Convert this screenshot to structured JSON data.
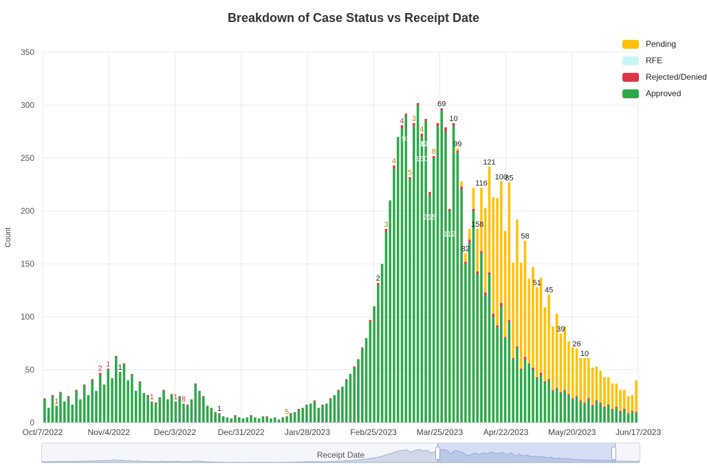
{
  "chart_data": {
    "type": "bar",
    "stacked": true,
    "title": "Breakdown of Case Status vs Receipt Date",
    "xlabel": "Receipt Date",
    "ylabel": "Count",
    "ylim": [
      0,
      350
    ],
    "yticks": [
      0,
      50,
      100,
      150,
      200,
      250,
      300,
      350
    ],
    "x_tick_labels": [
      "Oct/7/2022",
      "Nov/4/2022",
      "Dec/3/2022",
      "Dec/31/2022",
      "Jan/28/2023",
      "Feb/25/2023",
      "Mar/25/2023",
      "Apr/22/2023",
      "May/20/2023",
      "Jun/17/2023"
    ],
    "grid": true,
    "legend_position": "top-right",
    "series": [
      {
        "name": "Approved",
        "color": "#2ea84a",
        "values": [
          22,
          14,
          25,
          16,
          28,
          20,
          24,
          17,
          30,
          22,
          35,
          26,
          40,
          30,
          45,
          36,
          50,
          42,
          62,
          48,
          55,
          40,
          45,
          30,
          38,
          28,
          25,
          20,
          18,
          24,
          30,
          22,
          26,
          20,
          24,
          18,
          16,
          22,
          36,
          30,
          24,
          16,
          14,
          10,
          8,
          6,
          5,
          4,
          6,
          5,
          4,
          5,
          6,
          5,
          4,
          6,
          5,
          4,
          5,
          3,
          4,
          6,
          8,
          10,
          12,
          14,
          16,
          18,
          20,
          14,
          16,
          18,
          22,
          26,
          30,
          34,
          40,
          46,
          52,
          60,
          70,
          80,
          95,
          110,
          130,
          150,
          180,
          210,
          240,
          270,
          278,
          290,
          230,
          280,
          300,
          270,
          285,
          215,
          250,
          280,
          295,
          275,
          200,
          280,
          255,
          220,
          150,
          170,
          200,
          140,
          160,
          120,
          140,
          100,
          90,
          110,
          80,
          95,
          60,
          70,
          50,
          60,
          55,
          50,
          42,
          45,
          38,
          40,
          30,
          32,
          28,
          30,
          26,
          22,
          24,
          20,
          18,
          22,
          16,
          20,
          18,
          14,
          16,
          12,
          14,
          10,
          12,
          8,
          10,
          9
        ]
      },
      {
        "name": "Rejected/Denied",
        "color": "#dc3545",
        "values": [
          1,
          0,
          1,
          0,
          1,
          0,
          1,
          0,
          1,
          0,
          1,
          0,
          1,
          0,
          2,
          0,
          1,
          0,
          1,
          0,
          1,
          0,
          1,
          0,
          1,
          0,
          1,
          0,
          1,
          0,
          1,
          0,
          1,
          0,
          1,
          0,
          1,
          0,
          1,
          0,
          1,
          0,
          0,
          0,
          1,
          0,
          0,
          0,
          1,
          0,
          0,
          0,
          1,
          0,
          0,
          0,
          1,
          0,
          0,
          0,
          1,
          0,
          1,
          0,
          1,
          0,
          1,
          0,
          1,
          0,
          1,
          0,
          1,
          0,
          1,
          0,
          1,
          0,
          1,
          0,
          1,
          0,
          2,
          0,
          2,
          0,
          3,
          0,
          3,
          0,
          3,
          2,
          2,
          3,
          2,
          3,
          2,
          3,
          2,
          3,
          2,
          4,
          2,
          3,
          2,
          3,
          2,
          3,
          2,
          3,
          2,
          3,
          2,
          3,
          2,
          3,
          1,
          2,
          1,
          2,
          1,
          2,
          1,
          2,
          1,
          2,
          1,
          1,
          1,
          1,
          1,
          1,
          1,
          1,
          1,
          1,
          1,
          1,
          1,
          1,
          1,
          1,
          1,
          1,
          1,
          1,
          1,
          1,
          1,
          1
        ]
      },
      {
        "name": "RFE",
        "color": "#c9f4f6",
        "values": [
          0,
          0,
          0,
          0,
          0,
          0,
          0,
          0,
          0,
          0,
          0,
          0,
          0,
          0,
          0,
          0,
          0,
          0,
          0,
          0,
          0,
          0,
          0,
          0,
          0,
          0,
          0,
          0,
          0,
          0,
          0,
          0,
          0,
          0,
          0,
          0,
          0,
          0,
          0,
          0,
          0,
          0,
          0,
          0,
          0,
          0,
          0,
          0,
          0,
          0,
          0,
          0,
          0,
          0,
          0,
          0,
          0,
          0,
          0,
          0,
          0,
          0,
          0,
          0,
          0,
          0,
          0,
          0,
          0,
          0,
          0,
          0,
          0,
          0,
          0,
          0,
          0,
          0,
          0,
          0,
          0,
          0,
          0,
          0,
          0,
          0,
          0,
          0,
          0,
          0,
          0,
          0,
          0,
          0,
          0,
          0,
          0,
          0,
          0,
          0,
          0,
          0,
          0,
          0,
          0,
          0,
          0,
          0,
          0,
          0,
          0,
          0,
          0,
          0,
          0,
          0,
          0,
          0,
          0,
          0,
          0,
          0,
          0,
          0,
          0,
          0,
          0,
          0,
          0,
          0,
          0,
          0,
          0,
          0,
          0,
          0,
          0,
          0,
          0,
          0,
          0,
          0,
          0,
          0,
          0,
          0,
          0,
          0,
          0,
          0
        ]
      },
      {
        "name": "Pending",
        "color": "#ffc107",
        "values": [
          0,
          0,
          0,
          0,
          0,
          0,
          0,
          0,
          0,
          0,
          0,
          0,
          0,
          0,
          0,
          0,
          0,
          0,
          0,
          0,
          0,
          0,
          0,
          0,
          0,
          0,
          0,
          0,
          0,
          0,
          0,
          0,
          0,
          0,
          0,
          0,
          0,
          0,
          0,
          0,
          0,
          0,
          0,
          0,
          0,
          0,
          0,
          0,
          0,
          0,
          0,
          0,
          0,
          0,
          0,
          0,
          0,
          0,
          0,
          0,
          0,
          0,
          0,
          0,
          0,
          0,
          0,
          0,
          0,
          0,
          0,
          0,
          0,
          0,
          0,
          0,
          0,
          0,
          0,
          0,
          0,
          0,
          0,
          0,
          0,
          0,
          0,
          0,
          0,
          0,
          0,
          0,
          0,
          0,
          0,
          0,
          0,
          0,
          0,
          0,
          0,
          0,
          0,
          0,
          2,
          5,
          8,
          10,
          20,
          40,
          60,
          80,
          100,
          110,
          120,
          115,
          100,
          130,
          90,
          120,
          100,
          110,
          80,
          95,
          85,
          90,
          70,
          80,
          60,
          70,
          55,
          60,
          50,
          48,
          45,
          40,
          42,
          38,
          35,
          32,
          30,
          28,
          26,
          24,
          22,
          20,
          18,
          16,
          15,
          30
        ]
      }
    ],
    "annotations": [
      {
        "x": 3,
        "text": "1",
        "color": "#dc3545"
      },
      {
        "x": 14,
        "text": "2",
        "color": "#dc3545"
      },
      {
        "x": 16,
        "text": "1",
        "color": "#dc3545"
      },
      {
        "x": 19,
        "text": "1",
        "color": "#222"
      },
      {
        "x": 27,
        "text": "1",
        "color": "#dc3545"
      },
      {
        "x": 33,
        "text": "1",
        "color": "#dc3545"
      },
      {
        "x": 35,
        "text": "8",
        "color": "#dc3545"
      },
      {
        "x": 44,
        "text": "1",
        "color": "#222"
      },
      {
        "x": 61,
        "text": "5",
        "color": "#b8860b"
      },
      {
        "x": 84,
        "text": "2",
        "color": "#222"
      },
      {
        "x": 86,
        "text": "3",
        "color": "#b8860b"
      },
      {
        "x": 88,
        "text": "4",
        "color": "#b8860b"
      },
      {
        "x": 90,
        "text": "4",
        "color": "#dc3545"
      },
      {
        "x": 92,
        "text": "5",
        "color": "#b8860b"
      },
      {
        "x": 93,
        "text": "3",
        "color": "#b8860b"
      },
      {
        "x": 95,
        "text": "4",
        "color": "#b8860b"
      },
      {
        "x": 98,
        "text": "8",
        "color": "#b8860b"
      },
      {
        "x": 100,
        "text": "69",
        "color": "#222"
      },
      {
        "x": 103,
        "text": "10",
        "color": "#222"
      },
      {
        "x": 104,
        "text": "99",
        "color": "#222"
      },
      {
        "x": 106,
        "text": "82",
        "color": "#222"
      },
      {
        "x": 109,
        "text": "158",
        "color": "#222"
      },
      {
        "x": 110,
        "text": "116",
        "color": "#222"
      },
      {
        "x": 112,
        "text": "121",
        "color": "#222"
      },
      {
        "x": 115,
        "text": "100",
        "color": "#222"
      },
      {
        "x": 117,
        "text": "85",
        "color": "#222"
      },
      {
        "x": 121,
        "text": "58",
        "color": "#222"
      },
      {
        "x": 124,
        "text": "51",
        "color": "#222"
      },
      {
        "x": 127,
        "text": "45",
        "color": "#222"
      },
      {
        "x": 130,
        "text": "39",
        "color": "#222"
      },
      {
        "x": 134,
        "text": "26",
        "color": "#222"
      },
      {
        "x": 136,
        "text": "10",
        "color": "#222"
      },
      {
        "x": 96,
        "text": "302",
        "color": "#ffffff"
      },
      {
        "x": 97,
        "text": "215",
        "color": "#ffffff"
      },
      {
        "x": 95,
        "text": "150",
        "color": "#ffffff"
      },
      {
        "x": 96,
        "text": "123",
        "color": "#ffffff"
      },
      {
        "x": 102,
        "text": "112",
        "color": "#ffffff"
      },
      {
        "x": 91,
        "text": "93",
        "color": "#ffffff"
      }
    ]
  },
  "legend": {
    "items": [
      {
        "label": "Pending",
        "color": "#ffc107"
      },
      {
        "label": "RFE",
        "color": "#c9f4f6"
      },
      {
        "label": "Rejected/Denied",
        "color": "#dc3545"
      },
      {
        "label": "Approved",
        "color": "#2ea84a"
      }
    ]
  },
  "navigator": {
    "label": "Receipt Date"
  }
}
